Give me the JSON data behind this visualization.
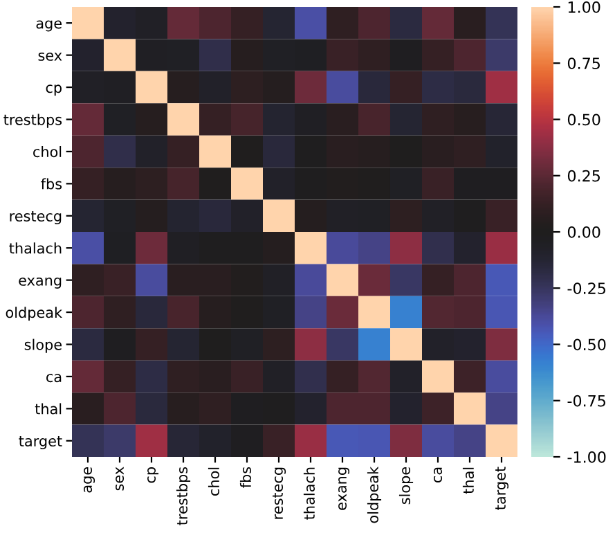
{
  "chart_data": {
    "type": "heatmap",
    "categories": [
      "age",
      "sex",
      "cp",
      "trestbps",
      "chol",
      "fbs",
      "restecg",
      "thalach",
      "exang",
      "oldpeak",
      "slope",
      "ca",
      "thal",
      "target"
    ],
    "y_categories": [
      "age",
      "sex",
      "cp",
      "trestbps",
      "chol",
      "fbs",
      "restecg",
      "thalach",
      "exang",
      "oldpeak",
      "slope",
      "ca",
      "thal",
      "target"
    ],
    "cells": [
      [
        1.0,
        -0.1,
        -0.07,
        0.28,
        0.21,
        0.12,
        -0.12,
        -0.4,
        0.1,
        0.21,
        -0.17,
        0.28,
        0.07,
        -0.23
      ],
      [
        -0.1,
        1.0,
        -0.05,
        -0.06,
        -0.2,
        0.05,
        -0.06,
        -0.04,
        0.14,
        0.1,
        -0.03,
        0.12,
        0.21,
        -0.28
      ],
      [
        -0.07,
        -0.05,
        1.0,
        0.05,
        -0.08,
        0.09,
        0.04,
        0.3,
        -0.39,
        -0.15,
        0.12,
        -0.18,
        -0.16,
        0.43
      ],
      [
        0.28,
        -0.06,
        0.05,
        1.0,
        0.12,
        0.18,
        -0.11,
        -0.05,
        0.07,
        0.19,
        -0.12,
        0.1,
        0.06,
        -0.14
      ],
      [
        0.21,
        -0.2,
        -0.08,
        0.12,
        1.0,
        0.01,
        -0.15,
        -0.01,
        0.07,
        0.05,
        0.0,
        0.07,
        0.1,
        -0.09
      ],
      [
        0.12,
        0.05,
        0.09,
        0.18,
        0.01,
        1.0,
        -0.08,
        -0.01,
        0.03,
        0.01,
        -0.06,
        0.14,
        -0.03,
        -0.03
      ],
      [
        -0.12,
        -0.06,
        0.04,
        -0.11,
        -0.15,
        -0.08,
        1.0,
        0.04,
        -0.07,
        -0.06,
        0.09,
        -0.07,
        -0.01,
        0.14
      ],
      [
        -0.4,
        -0.04,
        0.3,
        -0.05,
        -0.01,
        -0.01,
        0.04,
        1.0,
        -0.38,
        -0.34,
        0.39,
        -0.21,
        -0.1,
        0.42
      ],
      [
        0.1,
        0.14,
        -0.39,
        0.07,
        0.07,
        0.03,
        -0.07,
        -0.38,
        1.0,
        0.29,
        -0.26,
        0.12,
        0.21,
        -0.44
      ],
      [
        0.21,
        0.1,
        -0.15,
        0.19,
        0.05,
        0.01,
        -0.06,
        -0.34,
        0.29,
        1.0,
        -0.58,
        0.22,
        0.21,
        -0.43
      ],
      [
        -0.17,
        -0.03,
        0.12,
        -0.12,
        0.0,
        -0.06,
        0.09,
        0.39,
        -0.26,
        -0.58,
        1.0,
        -0.08,
        -0.1,
        0.35
      ],
      [
        0.28,
        0.12,
        -0.18,
        0.1,
        0.07,
        0.14,
        -0.07,
        -0.21,
        0.12,
        0.22,
        -0.08,
        1.0,
        0.15,
        -0.39
      ],
      [
        0.07,
        0.21,
        -0.16,
        0.06,
        0.1,
        -0.03,
        -0.01,
        -0.1,
        0.21,
        0.21,
        -0.1,
        0.15,
        1.0,
        -0.34
      ],
      [
        -0.23,
        -0.28,
        0.43,
        -0.14,
        -0.09,
        -0.03,
        0.14,
        0.42,
        -0.44,
        -0.43,
        0.35,
        -0.39,
        -0.34,
        1.0
      ]
    ],
    "clim": [
      -1,
      1
    ],
    "cticks": [
      {
        "value": -1,
        "label": "-1.00"
      },
      {
        "value": -0.75,
        "label": "-0.75"
      },
      {
        "value": -0.5,
        "label": "-0.50"
      },
      {
        "value": -0.25,
        "label": "-0.25"
      },
      {
        "value": 0,
        "label": "0.00"
      },
      {
        "value": 0.25,
        "label": "0.25"
      },
      {
        "value": 0.5,
        "label": "0.50"
      },
      {
        "value": 0.75,
        "label": "0.75"
      },
      {
        "value": 1,
        "label": "1.00"
      }
    ]
  }
}
